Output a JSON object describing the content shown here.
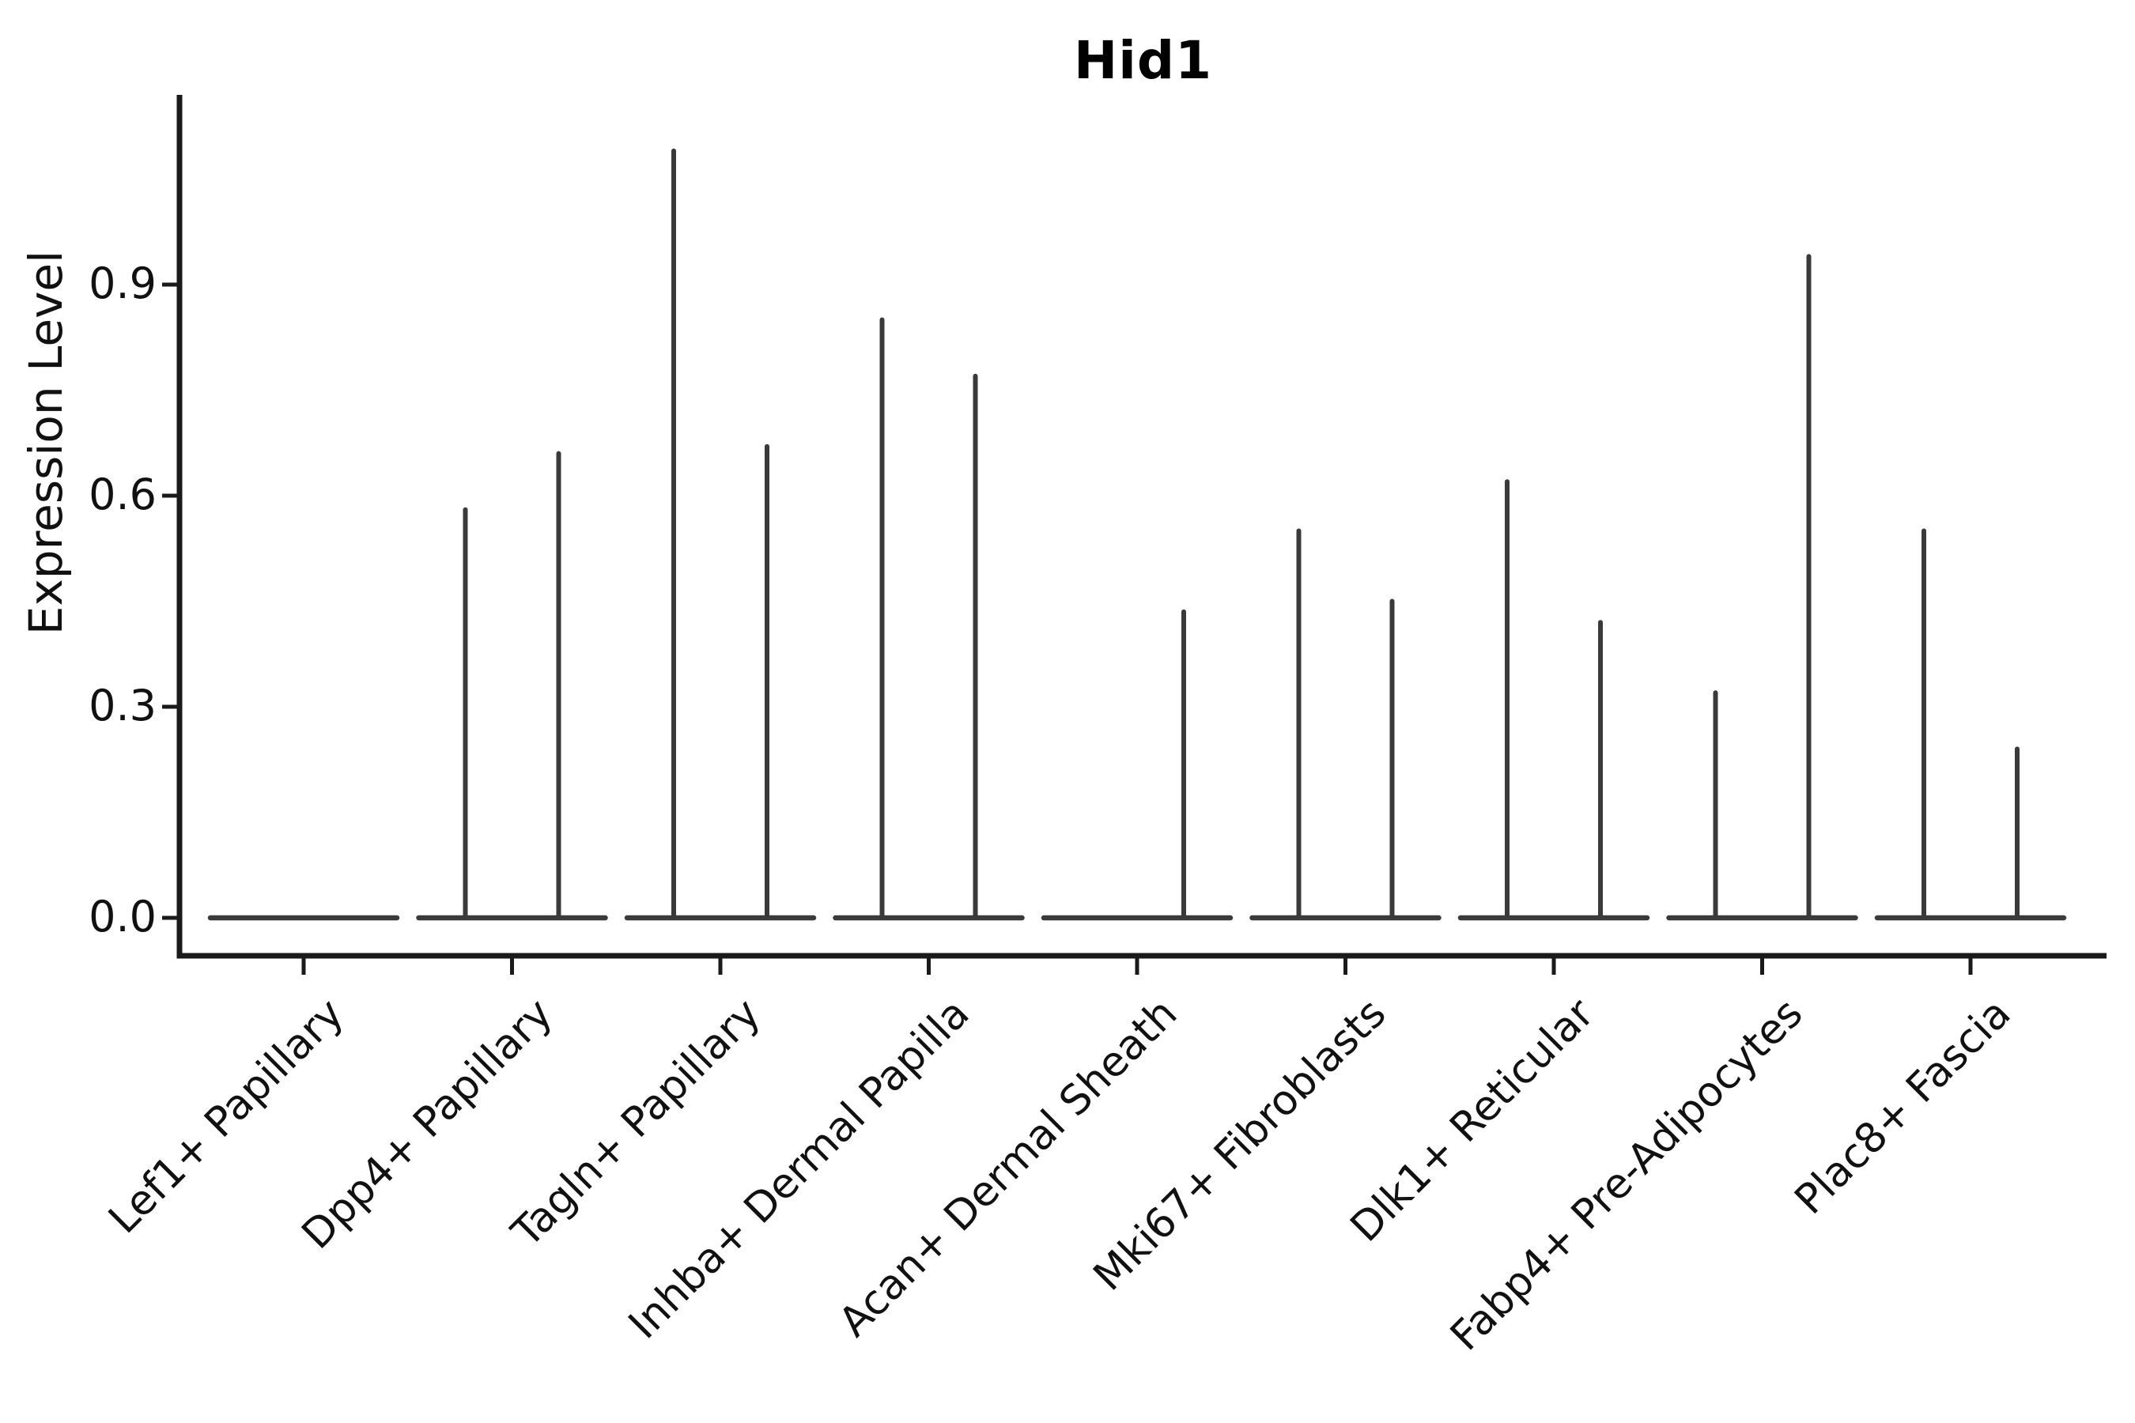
{
  "chart_data": {
    "type": "violin",
    "title": "Hid1",
    "ylabel": "Expression Level",
    "xlabel": "",
    "categories": [
      "Lef1+ Papillary",
      "Dpp4+ Papillary",
      "Tagln+ Papillary",
      "Inhba+ Dermal Papilla",
      "Acan+ Dermal Sheath",
      "Mki67+ Fibroblasts",
      "Dlk1+ Reticular",
      "Fabp4+ Pre-Adipocytes",
      "Plac8+ Fascia"
    ],
    "series": [
      {
        "name": "violin-left",
        "max_expression": [
          0,
          0.58,
          1.09,
          0.85,
          0,
          0.55,
          0.62,
          0.32,
          0.55
        ]
      },
      {
        "name": "violin-right",
        "max_expression": [
          0,
          0.66,
          0.67,
          0.77,
          0.435,
          0.45,
          0.42,
          0.94,
          0.24
        ]
      }
    ],
    "ytick_labels": [
      "0.0",
      "0.3",
      "0.6",
      "0.9"
    ],
    "ytick_values": [
      0.0,
      0.3,
      0.6,
      0.9
    ],
    "ylim": [
      -0.054,
      1.17
    ],
    "grid": false,
    "legend_position": "none",
    "x_label_rotation_deg": 45,
    "description": "Violin plot of Hid1 expression per fibroblast subtype; two violins per category, each collapsed to a flat line at 0 with a thin spike up to the maximum expression value.",
    "colors": {
      "background": "#ffffff",
      "violin_stroke": "#3a3a3a",
      "spine": "#1a1a1a",
      "tick": "#1a1a1a",
      "text": "#111111",
      "title_text": "#000000"
    }
  }
}
